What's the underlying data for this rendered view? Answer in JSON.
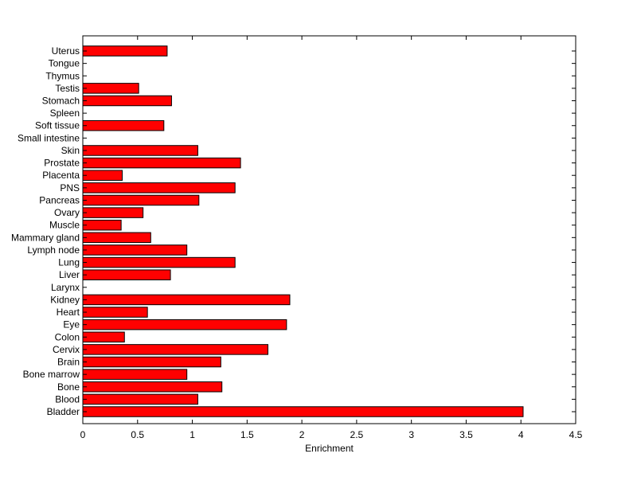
{
  "chart_data": {
    "type": "bar",
    "orientation": "horizontal",
    "title": "",
    "xlabel": "Enrichment",
    "ylabel": "",
    "xlim": [
      0,
      4.5
    ],
    "xticks": [
      0,
      0.5,
      1,
      1.5,
      2,
      2.5,
      3,
      3.5,
      4,
      4.5
    ],
    "xtick_labels": [
      "0",
      "0.5",
      "1",
      "1.5",
      "2",
      "2.5",
      "3",
      "3.5",
      "4",
      "4.5"
    ],
    "grid": false,
    "legend": "none",
    "bar_color": "#ff0000",
    "bar_edge_color": "#000000",
    "categories": [
      "Bladder",
      "Blood",
      "Bone",
      "Bone marrow",
      "Brain",
      "Cervix",
      "Colon",
      "Eye",
      "Heart",
      "Kidney",
      "Larynx",
      "Liver",
      "Lung",
      "Lymph node",
      "Mammary gland",
      "Muscle",
      "Ovary",
      "Pancreas",
      "PNS",
      "Placenta",
      "Prostate",
      "Skin",
      "Small intestine",
      "Soft tissue",
      "Spleen",
      "Stomach",
      "Testis",
      "Thymus",
      "Tongue",
      "Uterus"
    ],
    "values": [
      4.02,
      1.05,
      1.27,
      0.95,
      1.26,
      1.69,
      0.38,
      1.86,
      0.59,
      1.89,
      0,
      0.8,
      1.39,
      0.95,
      0.62,
      0.35,
      0.55,
      1.06,
      1.39,
      0.36,
      1.44,
      1.05,
      0,
      0.74,
      0,
      0.81,
      0.51,
      0,
      0,
      0.77
    ]
  }
}
